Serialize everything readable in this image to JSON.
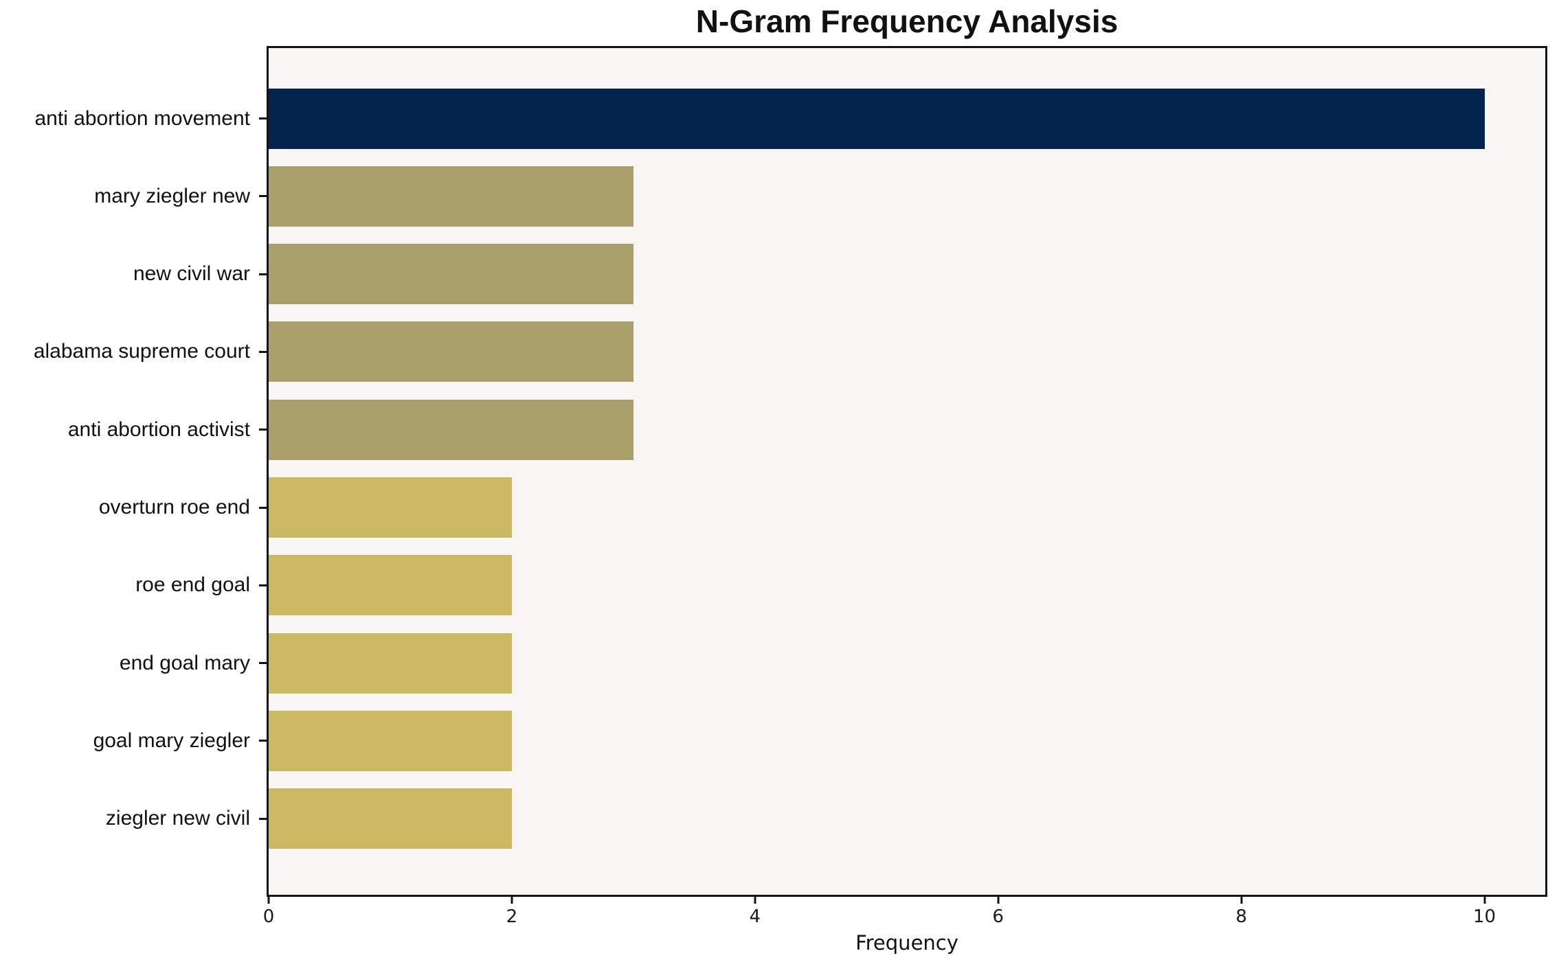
{
  "chart_data": {
    "type": "bar",
    "orientation": "horizontal",
    "title": "N-Gram Frequency Analysis",
    "xlabel": "Frequency",
    "ylabel": "",
    "categories": [
      "anti abortion movement",
      "mary ziegler new",
      "new civil war",
      "alabama supreme court",
      "anti abortion activist",
      "overturn roe end",
      "roe end goal",
      "end goal mary",
      "goal mary ziegler",
      "ziegler new civil"
    ],
    "values": [
      10,
      3,
      3,
      3,
      3,
      2,
      2,
      2,
      2,
      2
    ],
    "bar_colors": [
      "#03234d",
      "#a89f6a",
      "#a89f6a",
      "#a89f6a",
      "#a89f6a",
      "#cab862",
      "#cab862",
      "#cab862",
      "#cab862",
      "#cab862"
    ],
    "xlim": [
      0,
      10.5
    ],
    "xticks": [
      0,
      2,
      4,
      6,
      8,
      10
    ],
    "grid": false,
    "legend": "none",
    "plot_background": "#f7f6f4",
    "spine_color": "#141414"
  }
}
